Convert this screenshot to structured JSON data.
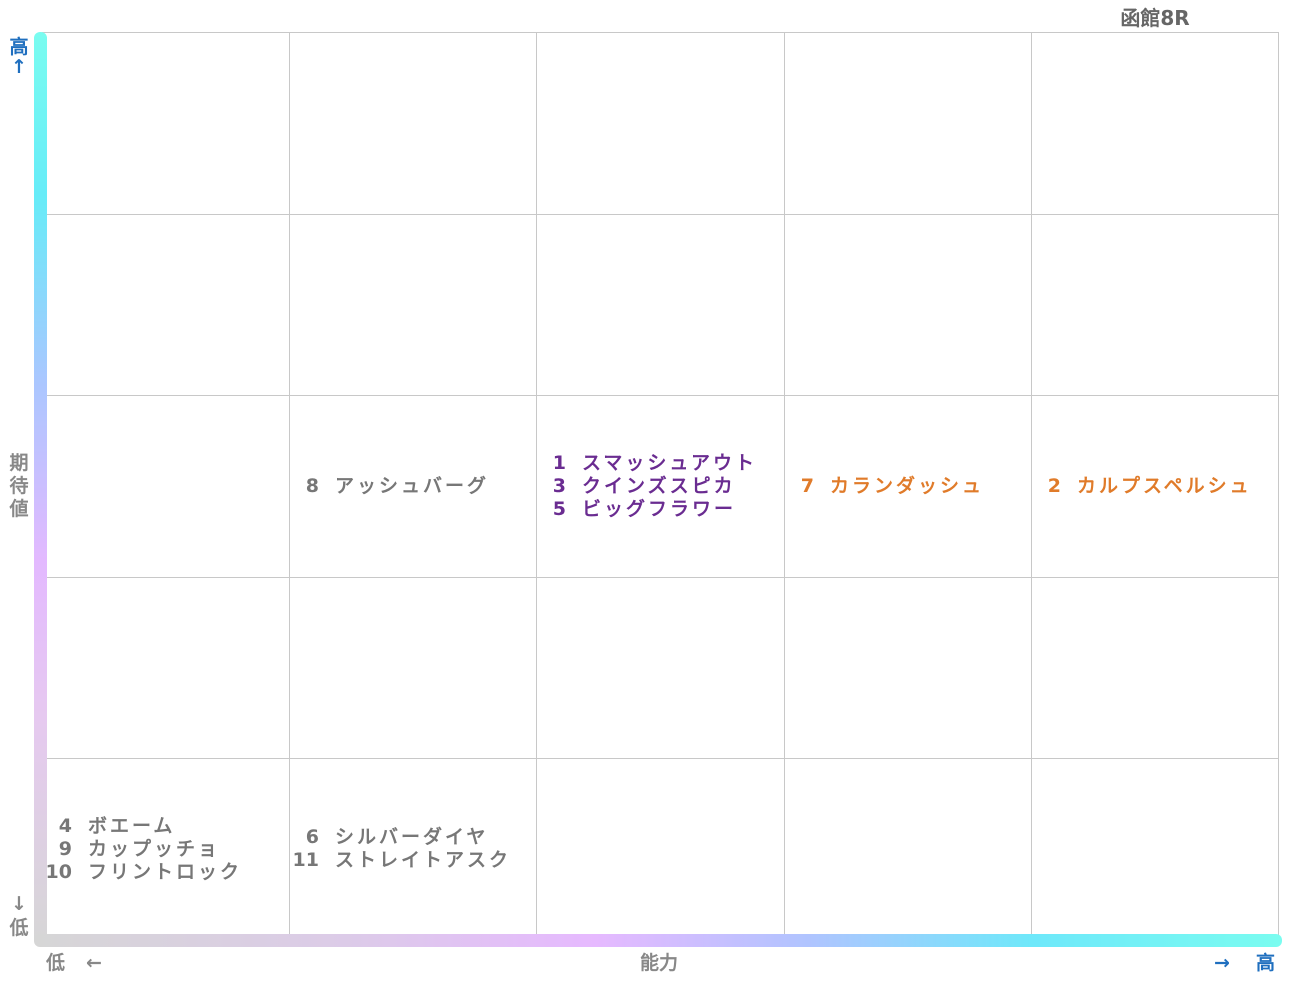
{
  "chart_data": {
    "type": "table",
    "title": "函館8R",
    "x_axis": {
      "label": "能力",
      "low_label": "低",
      "low_arrow": "←",
      "high_label": "高",
      "high_arrow": "→"
    },
    "y_axis": {
      "label": "期待値",
      "label_chars": [
        "期",
        "待",
        "値"
      ],
      "low_label": "低",
      "low_arrow": "↓",
      "high_label": "高",
      "high_arrow": "↑"
    },
    "columns": 5,
    "rows": 5,
    "cells": [
      {
        "col": 2,
        "row": 3,
        "color": "#777777",
        "entries": [
          {
            "num": "8",
            "name": "アッシュバーグ"
          }
        ]
      },
      {
        "col": 3,
        "row": 3,
        "color": "#6a2c91",
        "entries": [
          {
            "num": "1",
            "name": "スマッシュアウト"
          },
          {
            "num": "3",
            "name": "クインズスピカ"
          },
          {
            "num": "5",
            "name": "ビッグフラワー"
          }
        ]
      },
      {
        "col": 4,
        "row": 3,
        "color": "#e07b2a",
        "entries": [
          {
            "num": "7",
            "name": "カランダッシュ"
          }
        ]
      },
      {
        "col": 5,
        "row": 3,
        "color": "#e07b2a",
        "entries": [
          {
            "num": "2",
            "name": "カルプスペルシュ"
          }
        ]
      },
      {
        "col": 1,
        "row": 1,
        "color": "#777777",
        "entries": [
          {
            "num": "4",
            "name": "ボエーム"
          },
          {
            "num": "9",
            "name": "カップッチョ"
          },
          {
            "num": "10",
            "name": "フリントロック"
          }
        ]
      },
      {
        "col": 2,
        "row": 1,
        "color": "#777777",
        "entries": [
          {
            "num": "6",
            "name": "シルバーダイヤ"
          },
          {
            "num": "11",
            "name": "ストレイトアスク"
          }
        ]
      }
    ]
  }
}
